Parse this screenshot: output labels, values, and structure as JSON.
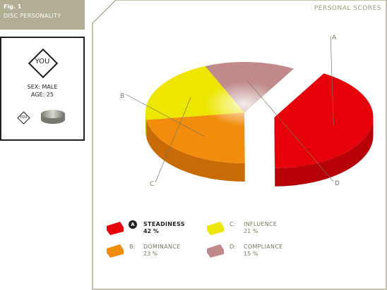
{
  "figure": {
    "number": "Fig. 1",
    "name": "DISC PERSONALITY"
  },
  "profile": {
    "badge": "YOU",
    "sex": "SEX: MALE",
    "age": "AGE: 25",
    "mini_badge": "YOU"
  },
  "chart_data": {
    "type": "pie",
    "title": "PERSONAL SCORES",
    "exploded": "A",
    "three_d": true,
    "slices": [
      {
        "letter": "A",
        "name": "STEADINESS",
        "value": 42,
        "label": "42 %",
        "color": "#e6000a",
        "side": "#b80009"
      },
      {
        "letter": "B",
        "name": "DOMINANCE",
        "value": 23,
        "label": "23 %",
        "color": "#f28c0c",
        "side": "#c86a05"
      },
      {
        "letter": "C",
        "name": "INFLUENCE",
        "value": 21,
        "label": "21 %",
        "color": "#ede600",
        "side": "#c4bc00"
      },
      {
        "letter": "D",
        "name": "COMPLIANCE",
        "value": 15,
        "label": "15 %",
        "color": "#c08a8a",
        "side": "#a36a6a"
      }
    ]
  },
  "legend": [
    {
      "letter": "A",
      "name": "STEADINESS",
      "value": "42 %"
    },
    {
      "letter": "B:",
      "name": "DOMINANCE",
      "value": "23 %"
    },
    {
      "letter": "C:",
      "name": "INFLUENCE",
      "value": "21 %"
    },
    {
      "letter": "D:",
      "name": "COMPLIANCE",
      "value": "15 %"
    }
  ],
  "colors": {
    "frame": "#b2ae93",
    "text_dark": "#231f20",
    "text_muted": "#7a765f"
  }
}
